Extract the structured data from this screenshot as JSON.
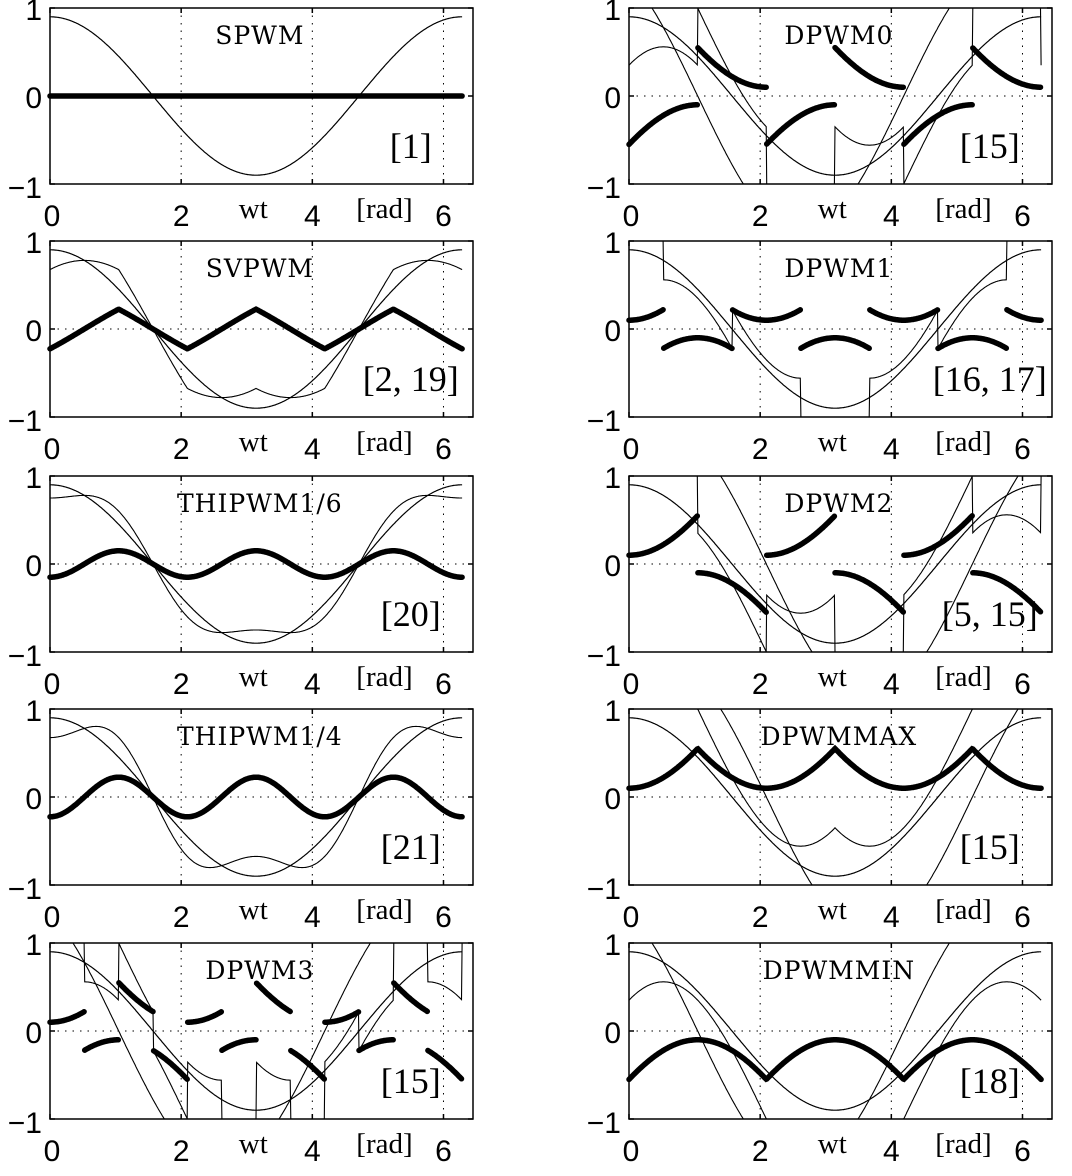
{
  "figure": {
    "axis_labels": {
      "x_var": "wt",
      "x_unit": "[rad]"
    },
    "x_ticks": [
      "0",
      "2",
      "4",
      "6"
    ],
    "y_ticks": [
      "1",
      "0",
      "−1"
    ],
    "colors": {
      "line": "#000000",
      "grid": "#000000",
      "background": "#ffffff"
    }
  },
  "panels": [
    {
      "key": "spwm",
      "title": "SPWM",
      "ref": "[1]"
    },
    {
      "key": "dpwm0",
      "title": "DPWM0",
      "ref": "[15]"
    },
    {
      "key": "svpwm",
      "title": "SVPWM",
      "ref": "[2, 19]"
    },
    {
      "key": "dpwm1",
      "title": "DPWM1",
      "ref": "[16, 17]"
    },
    {
      "key": "thi16",
      "title": "THIPWM1/6",
      "ref": "[20]"
    },
    {
      "key": "dpwm2",
      "title": "DPWM2",
      "ref": "[5, 15]"
    },
    {
      "key": "thi14",
      "title": "THIPWM1/4",
      "ref": "[21]"
    },
    {
      "key": "dpwmmax",
      "title": "DPWMMAX",
      "ref": "[15]"
    },
    {
      "key": "dpwm3",
      "title": "DPWM3",
      "ref": "[15]"
    },
    {
      "key": "dpwmmin",
      "title": "DPWMMIN",
      "ref": "[18]"
    }
  ],
  "chart_data": [
    {
      "type": "line",
      "title": "SPWM",
      "ref": "[1]",
      "xlabel": "wt [rad]",
      "ylabel": "",
      "xlim": [
        0,
        6.283
      ],
      "ylim": [
        -1,
        1
      ],
      "grid": "dotted",
      "series": [
        {
          "name": "reference m·cos(wt)",
          "amplitude": 0.9,
          "style": "thin"
        },
        {
          "name": "zero-sequence v0",
          "values_const": 0,
          "style": "thick"
        }
      ]
    },
    {
      "type": "line",
      "title": "DPWM0",
      "ref": "[15]",
      "xlabel": "wt [rad]",
      "ylabel": "",
      "xlim": [
        0,
        6.283
      ],
      "ylim": [
        -1,
        1
      ],
      "grid": "dotted",
      "series": [
        {
          "name": "reference",
          "amplitude": 0.9,
          "style": "thin"
        },
        {
          "name": "modulating wave (clamped)",
          "style": "thin"
        },
        {
          "name": "zero-sequence v0 (discontinuous)",
          "range": [
            -0.6,
            0.6
          ],
          "style": "thick"
        }
      ]
    },
    {
      "type": "line",
      "title": "SVPWM",
      "ref": "[2, 19]",
      "xlabel": "wt [rad]",
      "ylabel": "",
      "xlim": [
        0,
        6.283
      ],
      "ylim": [
        -1,
        1
      ],
      "grid": "dotted",
      "series": [
        {
          "name": "reference",
          "amplitude": 0.9,
          "style": "thin"
        },
        {
          "name": "modulating wave",
          "peak": 0.78,
          "style": "thin"
        },
        {
          "name": "zero-sequence v0 (triangular)",
          "peak": 0.225,
          "style": "thick"
        }
      ]
    },
    {
      "type": "line",
      "title": "DPWM1",
      "ref": "[16, 17]",
      "xlabel": "wt [rad]",
      "ylabel": "",
      "xlim": [
        0,
        6.283
      ],
      "ylim": [
        -1,
        1
      ],
      "grid": "dotted",
      "series": [
        {
          "name": "reference",
          "amplitude": 0.9,
          "style": "thin"
        },
        {
          "name": "modulating wave (clamped ±1 around peaks)",
          "style": "thin"
        },
        {
          "name": "zero-sequence v0",
          "range": [
            -0.23,
            0.23
          ],
          "style": "thick"
        }
      ]
    },
    {
      "type": "line",
      "title": "THIPWM1/6",
      "ref": "[20]",
      "xlabel": "wt [rad]",
      "ylabel": "",
      "xlim": [
        0,
        6.283
      ],
      "ylim": [
        -1,
        1
      ],
      "grid": "dotted",
      "series": [
        {
          "name": "reference",
          "amplitude": 0.9,
          "style": "thin"
        },
        {
          "name": "modulating wave",
          "style": "thin"
        },
        {
          "name": "third harmonic v0 = -(1/6)·m·cos(3wt)",
          "amplitude": 0.15,
          "style": "thick"
        }
      ]
    },
    {
      "type": "line",
      "title": "DPWM2",
      "ref": "[5, 15]",
      "xlabel": "wt [rad]",
      "ylabel": "",
      "xlim": [
        0,
        6.283
      ],
      "ylim": [
        -1,
        1
      ],
      "grid": "dotted",
      "series": [
        {
          "name": "reference",
          "amplitude": 0.9,
          "style": "thin"
        },
        {
          "name": "modulating wave (clamped)",
          "style": "thin"
        },
        {
          "name": "zero-sequence v0",
          "range": [
            -0.56,
            0.56
          ],
          "style": "thick"
        }
      ]
    },
    {
      "type": "line",
      "title": "THIPWM1/4",
      "ref": "[21]",
      "xlabel": "wt [rad]",
      "ylabel": "",
      "xlim": [
        0,
        6.283
      ],
      "ylim": [
        -1,
        1
      ],
      "grid": "dotted",
      "series": [
        {
          "name": "reference",
          "amplitude": 0.9,
          "style": "thin"
        },
        {
          "name": "modulating wave",
          "style": "thin"
        },
        {
          "name": "third harmonic v0 = -(1/4)·m·cos(3wt)",
          "amplitude": 0.225,
          "style": "thick"
        }
      ]
    },
    {
      "type": "line",
      "title": "DPWMMAX",
      "ref": "[15]",
      "xlabel": "wt [rad]",
      "ylabel": "",
      "xlim": [
        0,
        6.283
      ],
      "ylim": [
        -1,
        1
      ],
      "grid": "dotted",
      "series": [
        {
          "name": "reference",
          "amplitude": 0.9,
          "style": "thin"
        },
        {
          "name": "modulating wave",
          "style": "thin"
        },
        {
          "name": "zero-sequence v0 = 1 - max",
          "range": [
            0.1,
            0.55
          ],
          "style": "thick"
        }
      ]
    },
    {
      "type": "line",
      "title": "DPWM3",
      "ref": "[15]",
      "xlabel": "wt [rad]",
      "ylabel": "",
      "xlim": [
        0,
        6.283
      ],
      "ylim": [
        -1,
        1
      ],
      "grid": "dotted",
      "series": [
        {
          "name": "reference",
          "amplitude": 0.9,
          "style": "thin"
        },
        {
          "name": "modulating wave (clamped)",
          "style": "thin"
        },
        {
          "name": "zero-sequence v0",
          "range": [
            -0.56,
            0.56
          ],
          "style": "thick"
        }
      ]
    },
    {
      "type": "line",
      "title": "DPWMMIN",
      "ref": "[18]",
      "xlabel": "wt [rad]",
      "ylabel": "",
      "xlim": [
        0,
        6.283
      ],
      "ylim": [
        -1,
        1
      ],
      "grid": "dotted",
      "series": [
        {
          "name": "reference",
          "amplitude": 0.9,
          "style": "thin"
        },
        {
          "name": "modulating wave",
          "style": "thin"
        },
        {
          "name": "zero-sequence v0 = -1 - min",
          "range": [
            -0.55,
            -0.1
          ],
          "style": "thick"
        }
      ]
    }
  ]
}
